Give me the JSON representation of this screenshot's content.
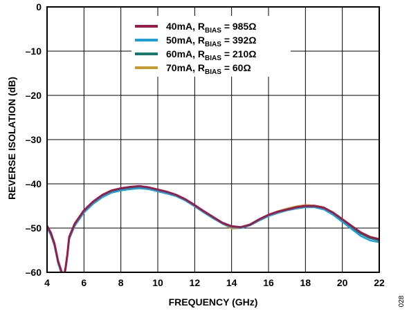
{
  "figure_id": "028",
  "chart_data": {
    "type": "line",
    "title": "",
    "xlabel": "FREQUENCY (GHz)",
    "ylabel": "REVERSE ISOLATION (dB)",
    "xlim": [
      4,
      22
    ],
    "ylim": [
      -60,
      0
    ],
    "xticks": [
      4,
      6,
      8,
      10,
      12,
      14,
      16,
      18,
      20,
      22
    ],
    "yticks": [
      0,
      -10,
      -20,
      -30,
      -40,
      -50,
      -60
    ],
    "ytick_labels": [
      "0",
      "–10",
      "–20",
      "–30",
      "–40",
      "–50",
      "–60"
    ],
    "grid": true,
    "legend_position": "top-right",
    "series": [
      {
        "name": "40mA, RBIAS = 985Ω",
        "legend": {
          "prefix": "40mA, R",
          "sub": "BIAS",
          "suffix": " = 985Ω"
        },
        "color": "#9b1c47",
        "x": [
          4.0,
          4.2,
          4.4,
          4.6,
          4.8,
          4.9,
          5.0,
          5.1,
          5.2,
          5.5,
          6.0,
          6.5,
          7.0,
          7.5,
          8.0,
          8.5,
          9.0,
          9.5,
          10.0,
          10.5,
          11.0,
          11.5,
          12.0,
          12.5,
          13.0,
          13.5,
          14.0,
          14.5,
          15.0,
          15.5,
          16.0,
          16.5,
          17.0,
          17.5,
          18.0,
          18.5,
          19.0,
          19.5,
          20.0,
          20.5,
          21.0,
          21.5,
          22.0
        ],
        "y": [
          -49.5,
          -51.0,
          -53.5,
          -57.5,
          -60.0,
          -61.0,
          -59.0,
          -56.0,
          -52.0,
          -49.0,
          -46.0,
          -44.0,
          -42.5,
          -41.5,
          -41.0,
          -40.7,
          -40.5,
          -40.8,
          -41.3,
          -41.8,
          -42.5,
          -43.5,
          -44.8,
          -46.2,
          -47.5,
          -48.8,
          -49.6,
          -49.8,
          -49.2,
          -48.0,
          -47.0,
          -46.3,
          -45.8,
          -45.3,
          -45.0,
          -45.0,
          -45.4,
          -46.5,
          -48.0,
          -49.5,
          -51.0,
          -52.0,
          -52.5
        ]
      },
      {
        "name": "50mA, RBIAS = 392Ω",
        "legend": {
          "prefix": "50mA, R",
          "sub": "BIAS",
          "suffix": " = 392Ω"
        },
        "color": "#1aa0d8",
        "x": [
          4.0,
          4.2,
          4.4,
          4.6,
          4.8,
          4.9,
          5.0,
          5.1,
          5.2,
          5.5,
          6.0,
          6.5,
          7.0,
          7.5,
          8.0,
          8.5,
          9.0,
          9.5,
          10.0,
          10.5,
          11.0,
          11.5,
          12.0,
          12.5,
          13.0,
          13.5,
          14.0,
          14.5,
          15.0,
          15.5,
          16.0,
          16.5,
          17.0,
          17.5,
          18.0,
          18.5,
          19.0,
          19.5,
          20.0,
          20.5,
          21.0,
          21.5,
          22.0
        ],
        "y": [
          -50.0,
          -51.5,
          -54.0,
          -58.0,
          -60.5,
          -61.0,
          -59.5,
          -56.5,
          -52.5,
          -49.5,
          -46.5,
          -44.5,
          -43.0,
          -42.0,
          -41.5,
          -41.2,
          -41.0,
          -41.2,
          -41.7,
          -42.2,
          -42.8,
          -43.8,
          -45.1,
          -46.5,
          -47.8,
          -49.0,
          -49.8,
          -50.0,
          -49.4,
          -48.3,
          -47.3,
          -46.6,
          -46.0,
          -45.6,
          -45.3,
          -45.3,
          -45.8,
          -47.0,
          -48.6,
          -50.2,
          -51.8,
          -52.8,
          -53.2
        ]
      },
      {
        "name": "60mA, RBIAS = 210Ω",
        "legend": {
          "prefix": "60mA, R",
          "sub": "BIAS",
          "suffix": " = 210Ω"
        },
        "color": "#147a6e",
        "x": [
          4.0,
          4.2,
          4.4,
          4.6,
          4.8,
          4.9,
          5.0,
          5.1,
          5.2,
          5.5,
          6.0,
          6.5,
          7.0,
          7.5,
          8.0,
          8.5,
          9.0,
          9.5,
          10.0,
          10.5,
          11.0,
          11.5,
          12.0,
          12.5,
          13.0,
          13.5,
          14.0,
          14.5,
          15.0,
          15.5,
          16.0,
          16.5,
          17.0,
          17.5,
          18.0,
          18.5,
          19.0,
          19.5,
          20.0,
          20.5,
          21.0,
          21.5,
          22.0
        ],
        "y": [
          -49.8,
          -51.2,
          -53.8,
          -57.8,
          -60.2,
          -61.0,
          -59.2,
          -56.2,
          -52.2,
          -49.2,
          -46.2,
          -44.2,
          -42.7,
          -41.7,
          -41.2,
          -40.9,
          -40.7,
          -41.0,
          -41.5,
          -42.0,
          -42.6,
          -43.6,
          -44.9,
          -46.3,
          -47.6,
          -48.9,
          -49.7,
          -49.9,
          -49.3,
          -48.1,
          -47.1,
          -46.4,
          -45.9,
          -45.4,
          -45.1,
          -45.1,
          -45.5,
          -46.7,
          -48.2,
          -49.8,
          -51.3,
          -52.3,
          -52.8
        ]
      },
      {
        "name": "70mA, RBIAS = 60Ω",
        "legend": {
          "prefix": "70mA, R",
          "sub": "BIAS",
          "suffix": " = 60Ω"
        },
        "color": "#c89a2e",
        "x": [
          4.0,
          4.2,
          4.4,
          4.6,
          4.8,
          4.9,
          5.0,
          5.1,
          5.2,
          5.5,
          6.0,
          6.5,
          7.0,
          7.5,
          8.0,
          8.5,
          9.0,
          9.5,
          10.0,
          10.5,
          11.0,
          11.5,
          12.0,
          12.5,
          13.0,
          13.5,
          14.0,
          14.5,
          15.0,
          15.5,
          16.0,
          16.5,
          17.0,
          17.5,
          18.0,
          18.5,
          19.0,
          19.5,
          20.0,
          20.5,
          21.0,
          21.5,
          22.0
        ],
        "y": [
          -49.7,
          -51.1,
          -53.7,
          -57.7,
          -60.1,
          -61.0,
          -59.1,
          -56.1,
          -52.1,
          -49.1,
          -46.1,
          -44.1,
          -42.6,
          -41.6,
          -41.1,
          -40.8,
          -40.6,
          -40.9,
          -41.4,
          -41.9,
          -42.6,
          -43.6,
          -44.9,
          -46.4,
          -47.7,
          -49.0,
          -50.1,
          -50.0,
          -49.3,
          -48.1,
          -47.0,
          -46.2,
          -45.6,
          -45.1,
          -44.8,
          -44.9,
          -45.3,
          -46.5,
          -48.0,
          -49.6,
          -51.0,
          -52.0,
          -52.5
        ]
      }
    ]
  }
}
